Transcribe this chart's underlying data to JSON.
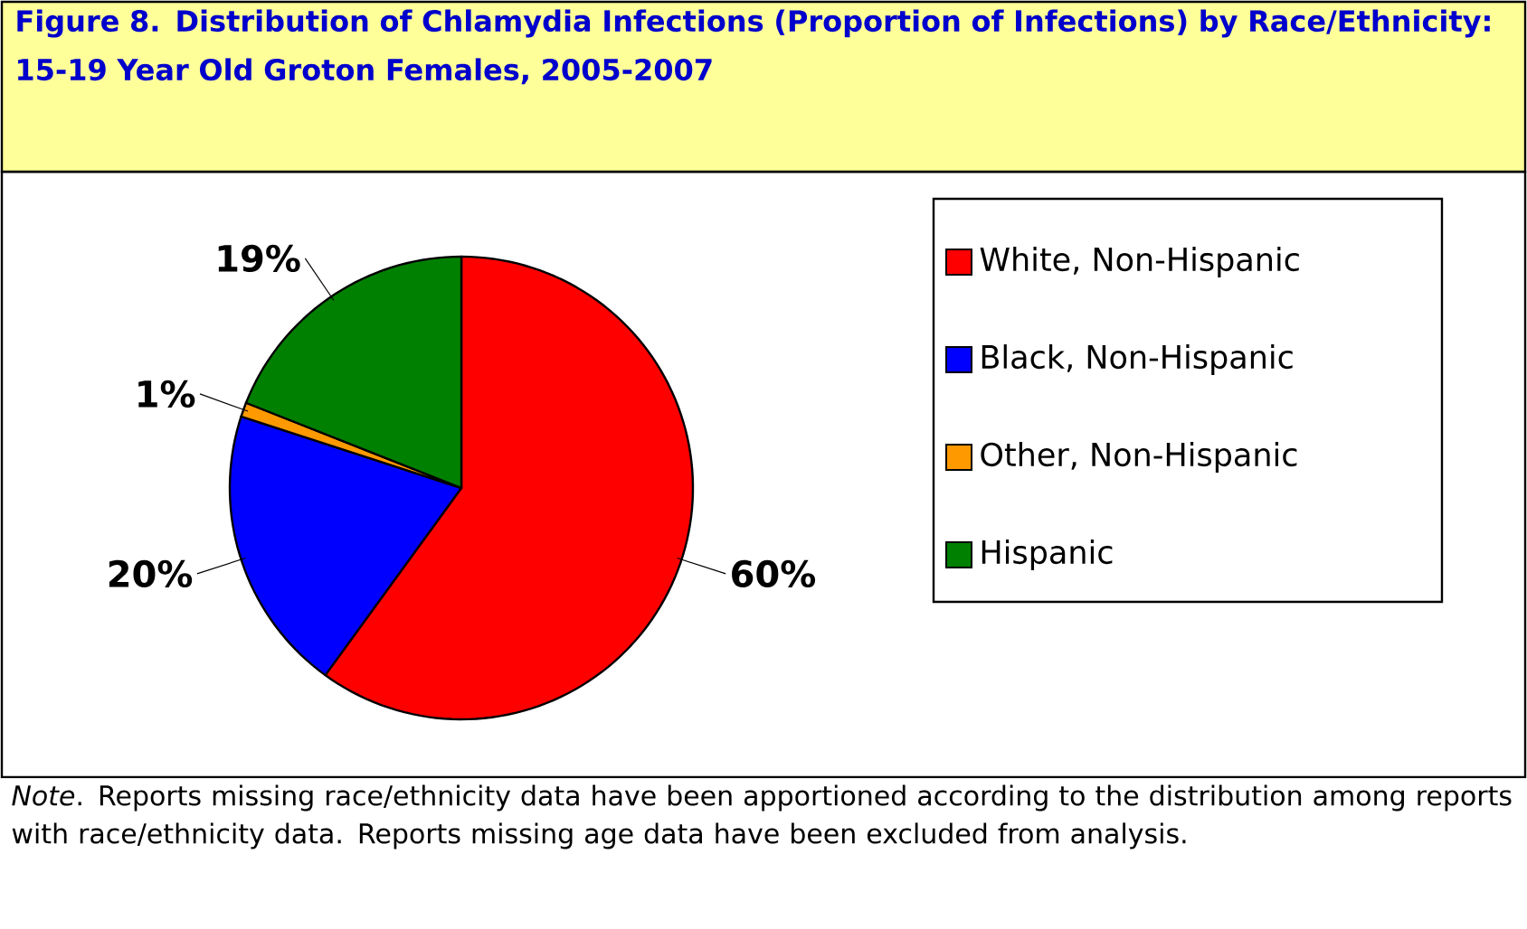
{
  "chart_data": {
    "type": "pie",
    "title": "Figure 8. Distribution of Chlamydia Infections (Proportion of Infections) by Race/Ethnicity: 15-19 Year Old Groton Females, 2005-2007",
    "categories": [
      "White, Non-Hispanic",
      "Black, Non-Hispanic",
      "Other, Non-Hispanic",
      "Hispanic"
    ],
    "values": [
      60,
      20,
      1,
      19
    ],
    "colors": [
      "#ff0000",
      "#0000ff",
      "#ff9900",
      "#008000"
    ],
    "value_labels": [
      "60%",
      "20%",
      "1%",
      "19%"
    ],
    "legend": "right",
    "annotations": [
      "*Note*.  Reports missing race/ethnicity data have been apportioned according to the distribution among reports with race/ethnicity data. Reports missing age data have been excluded from analysis."
    ]
  }
}
